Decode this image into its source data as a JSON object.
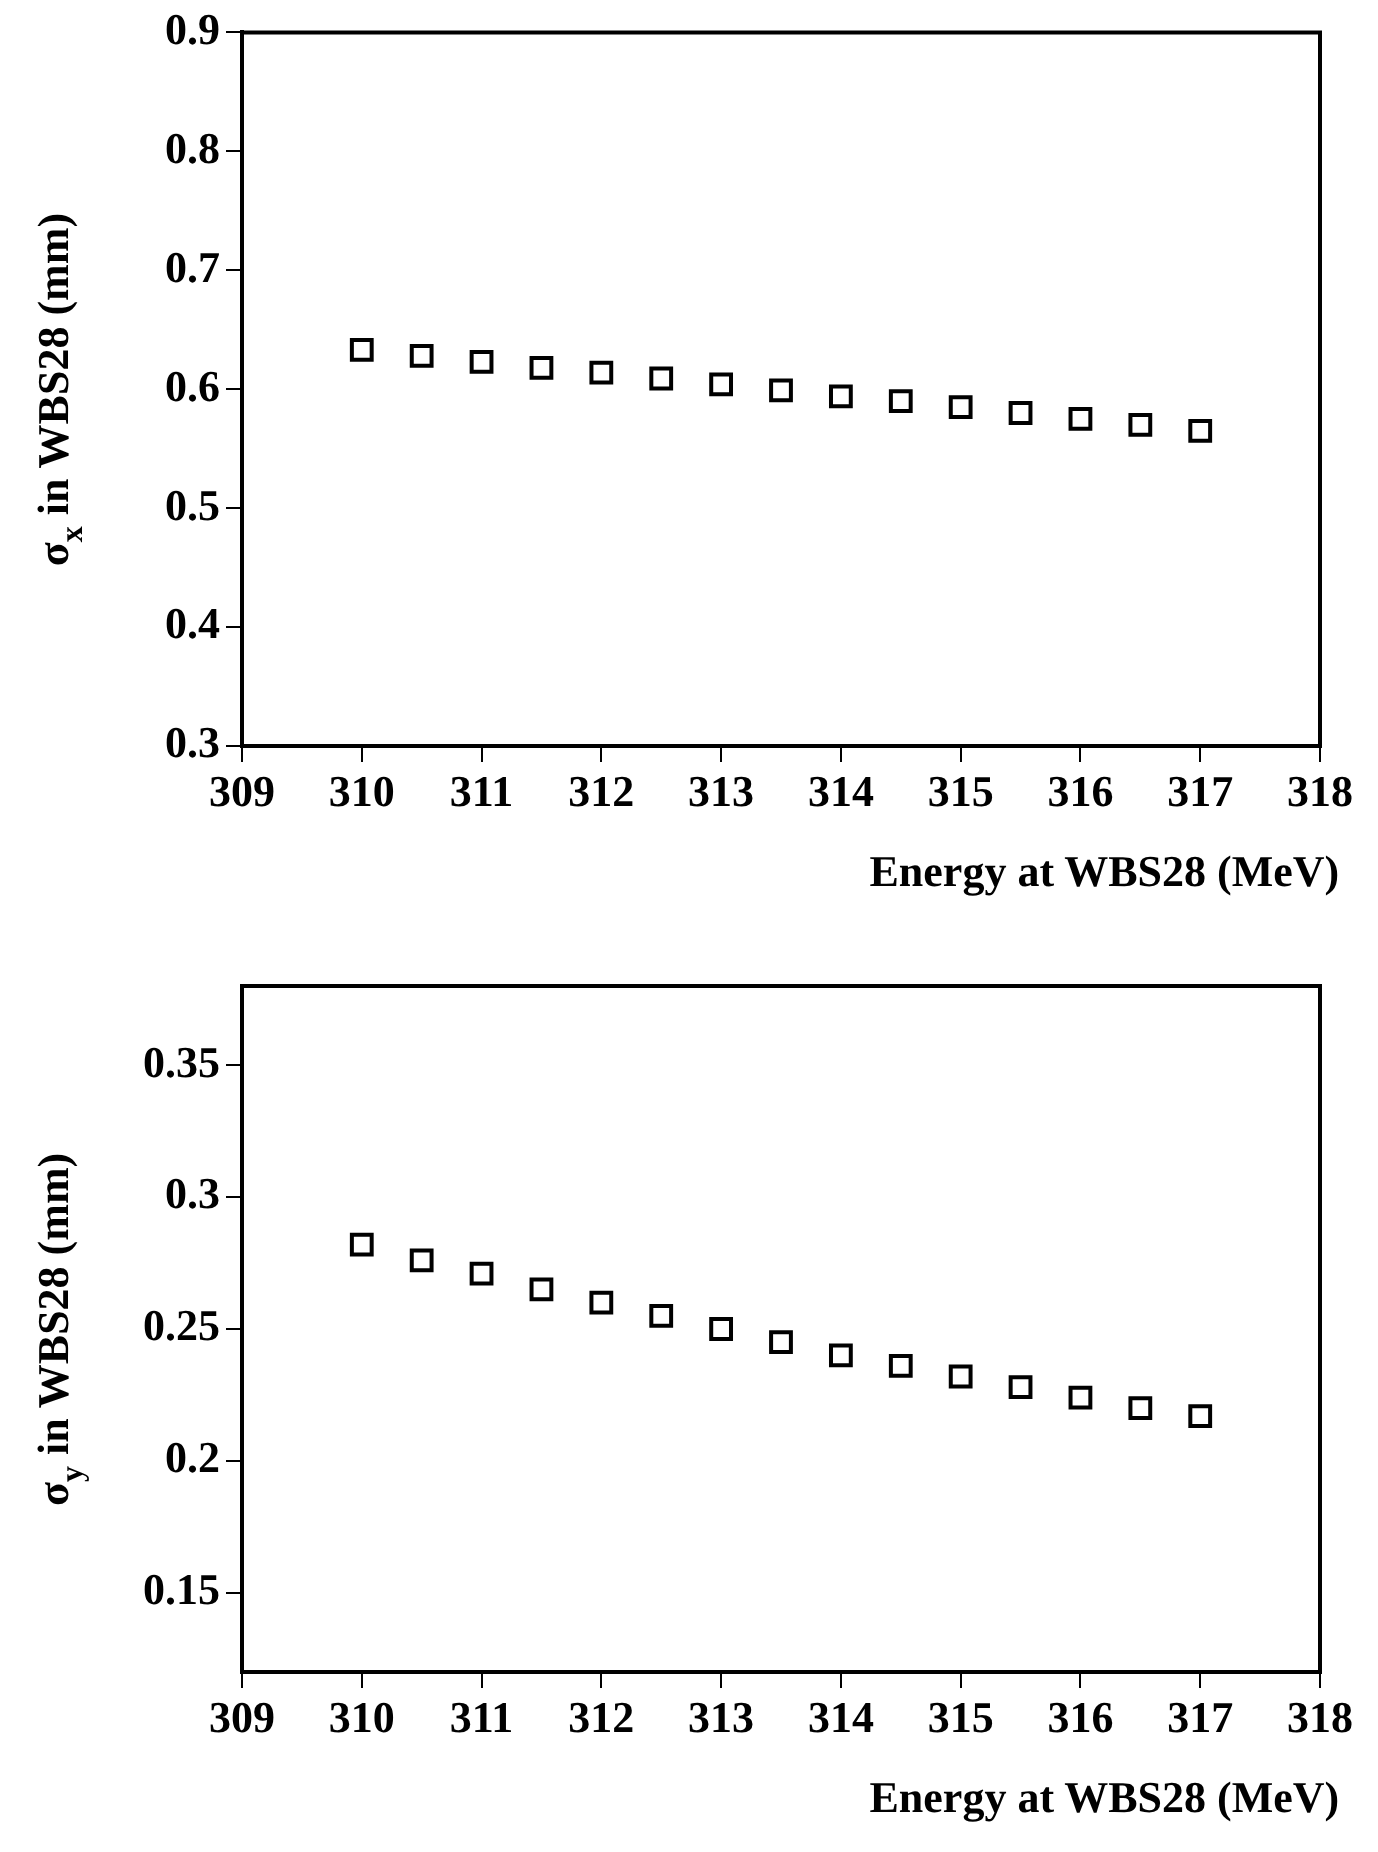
{
  "chart_data": [
    {
      "type": "scatter",
      "xlabel": "Energy at WBS28 (MeV)",
      "ylabel": "σ$_{x}$ in WBS28 (mm)",
      "marker": "square",
      "x": [
        310,
        310.5,
        311,
        311.5,
        312,
        312.5,
        313,
        313.5,
        314,
        314.5,
        315,
        315.5,
        316,
        316.5,
        317
      ],
      "series": [
        {
          "color": "#000000",
          "values": [
            0.633,
            0.628,
            0.623,
            0.618,
            0.614,
            0.609,
            0.604,
            0.599,
            0.594,
            0.59,
            0.585,
            0.58,
            0.575,
            0.57,
            0.565
          ]
        }
      ],
      "xlim": [
        309,
        318
      ],
      "xticks": [
        309,
        310,
        311,
        312,
        313,
        314,
        315,
        316,
        317,
        318
      ],
      "ylim": [
        0.3,
        0.9
      ],
      "yticks": [
        0.3,
        0.4,
        0.5,
        0.6,
        0.7,
        0.8,
        0.9
      ]
    },
    {
      "type": "scatter",
      "xlabel": "Energy at WBS28 (MeV)",
      "ylabel": "σ$_{y}$ in WBS28 (mm)",
      "marker": "square",
      "x": [
        310,
        310.5,
        311,
        311.5,
        312,
        312.5,
        313,
        313.5,
        314,
        314.5,
        315,
        315.5,
        316,
        316.5,
        317
      ],
      "series": [
        {
          "color": "#000000",
          "values": [
            0.282,
            0.276,
            0.271,
            0.265,
            0.26,
            0.255,
            0.25,
            0.245,
            0.24,
            0.236,
            0.232,
            0.228,
            0.224,
            0.22,
            0.217
          ]
        }
      ],
      "xlim": [
        309,
        318
      ],
      "xticks": [
        309,
        310,
        311,
        312,
        313,
        314,
        315,
        316,
        317,
        318
      ],
      "ylim": [
        0.12,
        0.38
      ],
      "yticks": [
        0.15,
        0.2,
        0.25,
        0.3,
        0.35
      ]
    }
  ]
}
